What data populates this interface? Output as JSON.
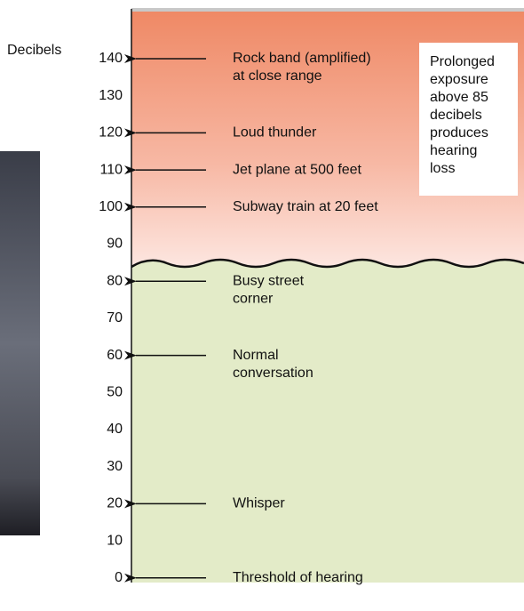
{
  "axis_label": "Decibels",
  "ticks": [
    140,
    130,
    120,
    110,
    100,
    90,
    80,
    70,
    60,
    50,
    40,
    30,
    20,
    10,
    0
  ],
  "annotations": [
    {
      "lines": [
        "Rock band (amplified)",
        "at close range"
      ]
    },
    {
      "lines": [
        "Loud thunder"
      ]
    },
    {
      "lines": [
        "Jet plane at 500 feet"
      ]
    },
    {
      "lines": [
        "Subway train at 20 feet"
      ]
    },
    {
      "lines": [
        "Busy street",
        "corner"
      ]
    },
    {
      "lines": [
        "Normal",
        "conversation"
      ]
    },
    {
      "lines": [
        "Whisper"
      ]
    },
    {
      "lines": [
        "Threshold of hearing"
      ]
    }
  ],
  "note": {
    "lines": [
      "Prolonged",
      "exposure",
      "above 85",
      "decibels",
      "produces",
      "hearing",
      "loss"
    ]
  }
}
